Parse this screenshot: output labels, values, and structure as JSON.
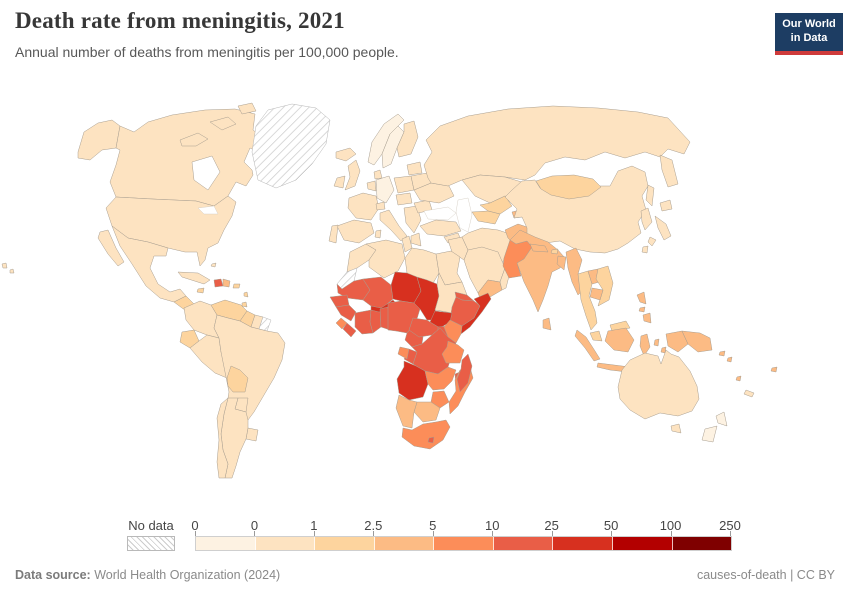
{
  "header": {
    "title": "Death rate from meningitis, 2021",
    "subtitle": "Annual number of deaths from meningitis per 100,000 people.",
    "logo": {
      "line1": "Our World",
      "line2": "in Data",
      "bg_color": "#1d3d63",
      "accent_color": "#cf3b3b"
    }
  },
  "legend": {
    "no_data_label": "No data",
    "tick_labels": [
      "0",
      "0",
      "1",
      "2.5",
      "5",
      "10",
      "25",
      "50",
      "100",
      "250"
    ]
  },
  "map": {
    "palette": [
      "#fdf2e2",
      "#fde3c1",
      "#fdd49e",
      "#fcbb84",
      "#fc8d59",
      "#e95e47",
      "#d7301f",
      "#b30000",
      "#7f0000"
    ],
    "no_data_pattern": "diagonal-hatch",
    "border_color": "#a89e90",
    "countries": {
      "alaska": 2,
      "canada": 2,
      "arctic1": 2,
      "arctic2": 2,
      "arctic3": 2,
      "greenland": "no_data",
      "iceland": 2,
      "usa": 2,
      "mexico": 2,
      "baja": 2,
      "centralamerica": 3,
      "cuba": 2,
      "haiti": 6,
      "dominican": 4,
      "jamaica": 3,
      "puertorico": 3,
      "antilles1": 3,
      "antilles2": 3,
      "bahamas": 2,
      "hawaii1": 2,
      "hawaii2": 2,
      "colombia": 2,
      "venezuela": 3,
      "guyana": 3,
      "suriname": 2,
      "guiana_fr": "no_data",
      "ecuador": 3,
      "peru": 2,
      "brazil": 2,
      "bolivia": 3,
      "paraguay": 2,
      "uruguay": 2,
      "argentina": 2,
      "chile": 2,
      "uk": 2,
      "ireland": 2,
      "norway": 1,
      "sweden": 1,
      "finland": 2,
      "denmark": 2,
      "france": 2,
      "spain": 2,
      "portugal": 2,
      "germany": 1,
      "benelux": 2,
      "italy": 2,
      "sicily": 2,
      "sardinia": 2,
      "switzerland": 2,
      "poland": 2,
      "czech": 2,
      "balkans": 2,
      "greece": 2,
      "romania": 2,
      "ukraine": 2,
      "belarus": 2,
      "baltics": 2,
      "russia": 2,
      "kamchatka": 2,
      "sakhalin": 2,
      "turkey": 2,
      "syria": 2,
      "israel_jordan": 2,
      "iraq": 2,
      "iran": 2,
      "saudi": 2,
      "yemen": 4,
      "oman": 2,
      "kazakhstan": 2,
      "uzbekistan": 3,
      "turkmenistan": 3,
      "kyrgyzstan": 3,
      "tajikistan": 4,
      "afghanistan": 4,
      "pakistan": 5,
      "india": 4,
      "nepal": 4,
      "bhutan": 3,
      "bangladesh": 4,
      "srilanka": 4,
      "myanmar": 4,
      "thailand": 3,
      "laos": 4,
      "vietnam": 3,
      "cambodia": 4,
      "malaysia": 3,
      "malaysia_borneo": 3,
      "sumatra": 4,
      "java": 4,
      "borneo": 4,
      "sulawesi": 4,
      "moluccas1": 4,
      "moluccas2": 4,
      "lesser_sunda": 4,
      "timor": 4,
      "wpapua": 4,
      "png": 4,
      "solomon1": 4,
      "solomon2": 4,
      "vanuatu": 4,
      "fiji": 4,
      "newcaledonia": 2,
      "philippines_luzon": 4,
      "philippines_visayas": 4,
      "philippines_mindanao": 4,
      "taiwan": 2,
      "china": 2,
      "mongolia": 3,
      "korea": 2,
      "japan_hokkaido": 2,
      "japan_honshu": 2,
      "japan_kyushu": 2,
      "australia": 2,
      "tasmania": 2,
      "nz_north": 1,
      "nz_south": 1,
      "morocco": 2,
      "wsahara": "no_data",
      "algeria": 2,
      "tunisia": 2,
      "libya": 2,
      "egypt": 2,
      "mauritania": 6,
      "mali": 6,
      "niger": 7,
      "chad": 7,
      "sudan": 2,
      "eritrea": 6,
      "djibouti": 5,
      "ethiopia": 6,
      "somalia": 7,
      "senegal": 6,
      "guinea": 6,
      "sierraleone": 5,
      "liberia": 6,
      "ivorycoast": 6,
      "ghana": 6,
      "burkina": 7,
      "togobenin": 6,
      "nigeria": 6,
      "cameroon": 6,
      "car": 6,
      "ssudan": 7,
      "uganda": 6,
      "kenya": 5,
      "rwanda": 6,
      "burundi": 6,
      "drc": 6,
      "congo": 6,
      "gabon": 5,
      "tanzania": 5,
      "angola": 7,
      "zambia": 5,
      "malawi": 6,
      "mozambique": 5,
      "zimbabwe": 5,
      "botswana": 4,
      "namibia": 4,
      "southafrica": 5,
      "lesotho": 6,
      "madagascar": 6
    }
  },
  "footer": {
    "source_label": "Data source:",
    "source_value": "World Health Organization (2024)",
    "right": "causes-of-death | CC BY"
  }
}
